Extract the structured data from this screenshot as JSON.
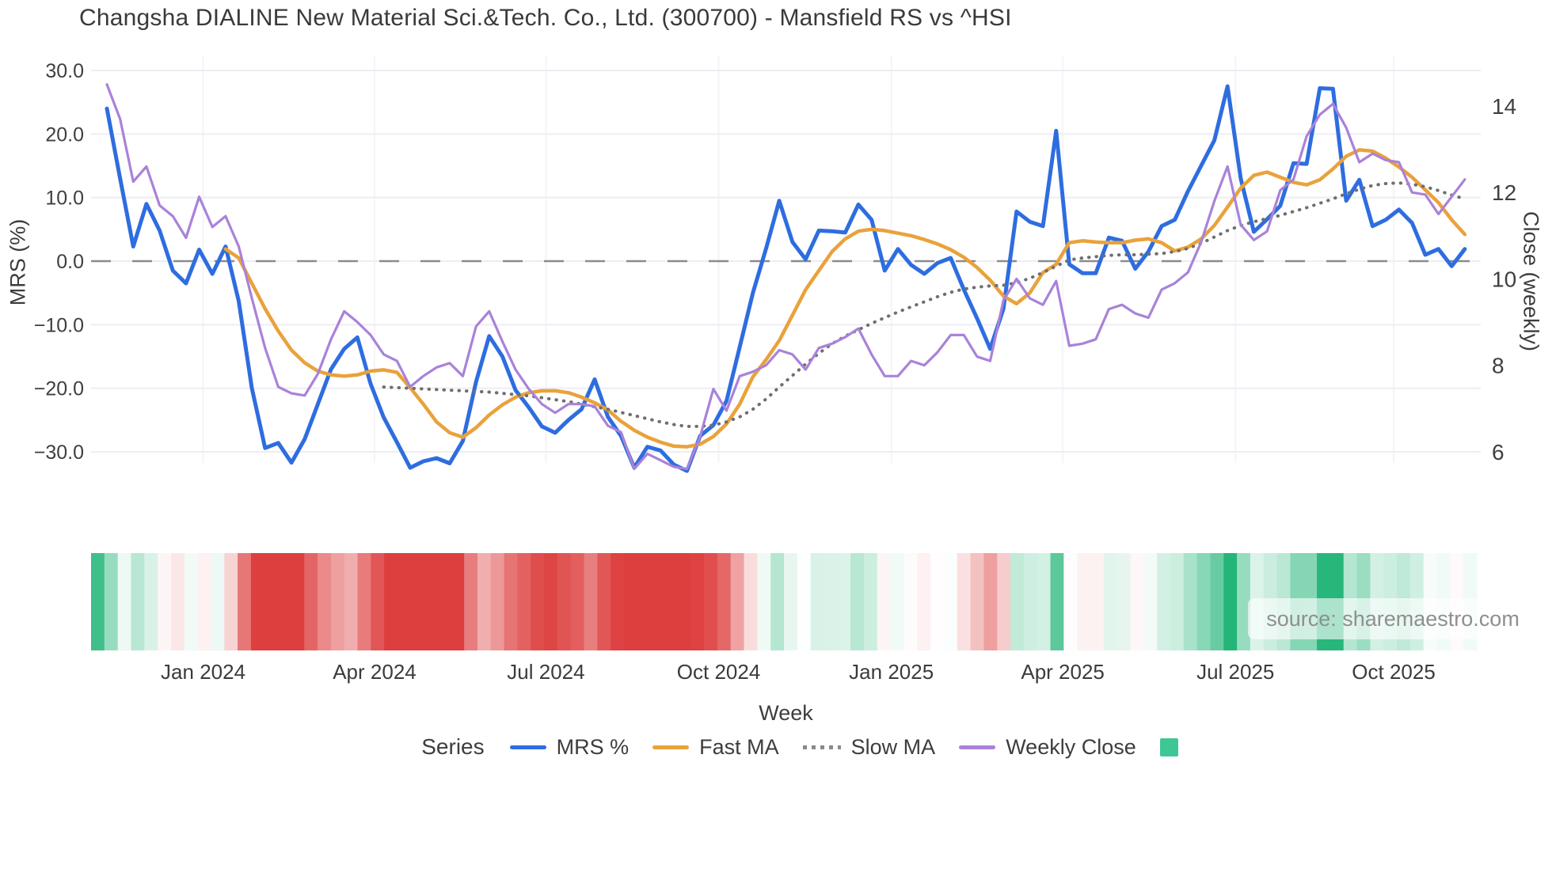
{
  "title": "Changsha DIALINE New Material Sci.&Tech. Co., Ltd. (300700) - Mansfield RS vs ^HSI",
  "watermark": "source: sharemaestro.com",
  "axes": {
    "left": {
      "label": "MRS (%)",
      "ticks": [
        "30.0",
        "20.0",
        "10.0",
        "0.0",
        "−10.0",
        "−20.0",
        "−30.0"
      ],
      "tick_values": [
        30,
        20,
        10,
        0,
        -10,
        -20,
        -30
      ]
    },
    "right": {
      "label": "Close (weekly)",
      "ticks": [
        "14",
        "12",
        "10",
        "8",
        "6"
      ],
      "tick_values": [
        14,
        12,
        10,
        8,
        6
      ]
    },
    "x": {
      "label": "Week",
      "ticks": [
        "Jan 2024",
        "Apr 2024",
        "Jul 2024",
        "Oct 2024",
        "Jan 2025",
        "Apr 2025",
        "Jul 2025",
        "Oct 2025"
      ],
      "tick_weeks": [
        7.3,
        20.3,
        33.3,
        46.4,
        59.5,
        72.5,
        85.6,
        97.6
      ]
    }
  },
  "legend": {
    "title": "Series",
    "items": [
      {
        "label": "MRS %",
        "type": "line",
        "color": "#2e6de0"
      },
      {
        "label": "Fast MA",
        "type": "line",
        "color": "#e9a23b"
      },
      {
        "label": "Slow MA",
        "type": "dotted",
        "color": "#8a8a8a"
      },
      {
        "label": "Weekly Close",
        "type": "line",
        "color": "#a982d9"
      },
      {
        "label": "",
        "type": "square",
        "color": "#3ec795"
      }
    ]
  },
  "chart_data": {
    "type": "line",
    "x_unit": "week",
    "weeks": 104,
    "title": "Changsha DIALINE New Material Sci.&Tech. Co., Ltd. (300700) - Mansfield RS vs ^HSI",
    "xlabel": "Week",
    "ylabel_left": "MRS (%)",
    "ylabel_right": "Close (weekly)",
    "ylim_left": [
      -34,
      32
    ],
    "ylim_right": [
      5.9,
      14.6
    ],
    "grid": "horizontal",
    "zero_line": {
      "value": 0,
      "axis": "left",
      "style": "dashed",
      "color": "#8b8b8b"
    },
    "legend_position": "bottom",
    "series": [
      {
        "name": "MRS %",
        "axis": "left",
        "color": "#2e6de0",
        "style": "solid",
        "width": 5,
        "values": [
          24,
          13,
          2.3,
          9,
          4.8,
          -1.5,
          -3.5,
          1.8,
          -2,
          2.3,
          -6.3,
          -20,
          -29.4,
          -28.6,
          -31.7,
          -28,
          -22.5,
          -17,
          -13.8,
          -12,
          -19.3,
          -24.6,
          -28.5,
          -32.5,
          -31.5,
          -31,
          -31.8,
          -28.3,
          -19,
          -11.8,
          -15,
          -20.3,
          -23,
          -26,
          -27,
          -25,
          -23.3,
          -18.6,
          -24.5,
          -27.5,
          -32.5,
          -29.2,
          -29.8,
          -32,
          -33,
          -27.5,
          -25.8,
          -22,
          -13.5,
          -5,
          2,
          9.5,
          3,
          0.3,
          4.8,
          4.7,
          4.5,
          8.9,
          6.5,
          -1.5,
          1.9,
          -0.6,
          -2,
          -0.3,
          0.5,
          -4.5,
          -9,
          -13.8,
          -7.5,
          7.8,
          6.2,
          5.5,
          20.5,
          -0.5,
          -1.9,
          -1.9,
          3.7,
          3.2,
          -1.2,
          1.5,
          5.5,
          6.5,
          11,
          15,
          19,
          27.5,
          13,
          4.6,
          6.6,
          8.7,
          15.4,
          15.3,
          27.2,
          27.1,
          9.5,
          12.8,
          5.5,
          6.5,
          8.1,
          6,
          1,
          1.9,
          -0.8,
          1.9
        ]
      },
      {
        "name": "Fast MA",
        "axis": "left",
        "color": "#e9a23b",
        "style": "solid",
        "width": 4.5,
        "values": [
          null,
          null,
          null,
          null,
          null,
          null,
          null,
          null,
          null,
          1.9,
          0.5,
          -3.5,
          -7.5,
          -11,
          -14,
          -16,
          -17.3,
          -17.9,
          -18.1,
          -17.9,
          -17.3,
          -17.1,
          -17.5,
          -19.9,
          -22.5,
          -25.3,
          -27,
          -27.7,
          -26.2,
          -24.2,
          -22.6,
          -21.4,
          -20.7,
          -20.4,
          -20.4,
          -20.7,
          -21.4,
          -22.3,
          -23.4,
          -25.2,
          -26.6,
          -27.7,
          -28.5,
          -29.1,
          -29.2,
          -28.8,
          -27.6,
          -25.6,
          -22.5,
          -18.2,
          -15.5,
          -12.5,
          -8.5,
          -4.5,
          -1.5,
          1.5,
          3.5,
          4.7,
          5,
          4.8,
          4.4,
          4,
          3.4,
          2.7,
          1.8,
          0.6,
          -1,
          -3,
          -5.5,
          -6.7,
          -5,
          -1.8,
          -0.5,
          2.9,
          3.2,
          3,
          2.9,
          2.9,
          3.3,
          3.5,
          2.9,
          1.6,
          2.2,
          3.5,
          5.6,
          8.5,
          11.5,
          13.5,
          14,
          13.2,
          12.4,
          12,
          12.8,
          14.5,
          16.5,
          17.5,
          17.3,
          16.2,
          14.8,
          13.2,
          11.2,
          9.2,
          6.5,
          4.2
        ]
      },
      {
        "name": "Slow MA",
        "axis": "left",
        "color": "#6f6f6f",
        "style": "dotted",
        "width": 4,
        "values": [
          null,
          null,
          null,
          null,
          null,
          null,
          null,
          null,
          null,
          null,
          null,
          null,
          null,
          null,
          null,
          null,
          null,
          null,
          null,
          null,
          null,
          -19.8,
          -19.9,
          -20,
          -20.1,
          -20.2,
          -20.3,
          -20.4,
          -20.5,
          -20.6,
          -20.8,
          -21,
          -21.2,
          -21.5,
          -21.8,
          -22.1,
          -22.5,
          -22.9,
          -23.3,
          -23.8,
          -24.3,
          -24.8,
          -25.3,
          -25.7,
          -26,
          -26,
          -25.8,
          -25.3,
          -24.5,
          -23.3,
          -21.7,
          -19.8,
          -18,
          -16.2,
          -14.5,
          -13,
          -11.8,
          -10.8,
          -9.8,
          -8.9,
          -8,
          -7.2,
          -6.4,
          -5.6,
          -4.9,
          -4.4,
          -4.1,
          -3.9,
          -3.8,
          -3.4,
          -2.7,
          -1.8,
          -0.8,
          0.2,
          0.5,
          0.7,
          0.9,
          1,
          1,
          1.1,
          1.2,
          1.5,
          2,
          2.8,
          3.8,
          4.8,
          5.6,
          6.2,
          6.7,
          7.2,
          7.8,
          8.4,
          9.1,
          9.8,
          10.6,
          11.3,
          11.9,
          12.2,
          12.3,
          12.1,
          11.7,
          11.1,
          10.4,
          9.8
        ]
      },
      {
        "name": "Weekly Close",
        "axis": "right",
        "color": "#a982d9",
        "style": "solid",
        "width": 3.2,
        "values": [
          14.5,
          13.7,
          12.25,
          12.6,
          11.7,
          11.45,
          10.95,
          11.9,
          11.2,
          11.45,
          10.75,
          9.55,
          8.4,
          7.5,
          7.35,
          7.3,
          7.8,
          8.6,
          9.25,
          9,
          8.7,
          8.25,
          8.1,
          7.5,
          7.75,
          7.95,
          8.05,
          7.75,
          8.9,
          9.25,
          8.55,
          7.9,
          7.45,
          7.1,
          6.9,
          7.1,
          7.1,
          7.05,
          6.6,
          6.45,
          5.6,
          5.95,
          5.8,
          5.65,
          5.6,
          6.35,
          7.45,
          6.95,
          7.75,
          7.85,
          8,
          8.35,
          8.25,
          7.9,
          8.4,
          8.5,
          8.65,
          8.85,
          8.25,
          7.75,
          7.75,
          8.1,
          8,
          8.3,
          8.7,
          8.7,
          8.2,
          8.1,
          9.5,
          10,
          9.55,
          9.4,
          9.95,
          8.45,
          8.5,
          8.6,
          9.3,
          9.4,
          9.2,
          9.1,
          9.75,
          9.9,
          10.15,
          10.85,
          11.8,
          12.6,
          11.25,
          10.9,
          11.1,
          12.05,
          12.3,
          13.3,
          13.8,
          14.05,
          13.5,
          12.7,
          12.9,
          12.75,
          12.7,
          12,
          11.95,
          11.5,
          11.9,
          12.3
        ]
      }
    ],
    "heatmap": {
      "derived_from": "MRS %",
      "positive_color": "#21b477",
      "negative_color": "#dd3f3f",
      "neutral_color": "#ffffff",
      "position": "below_plot"
    }
  }
}
